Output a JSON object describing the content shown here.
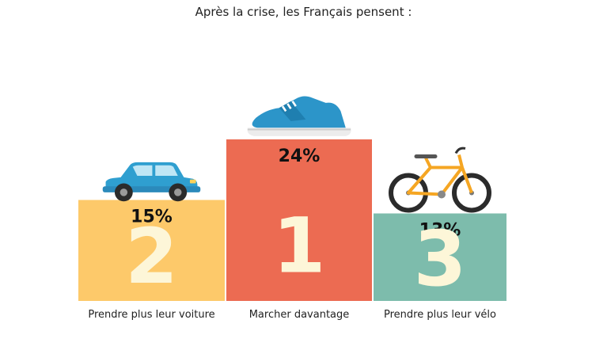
{
  "title": "Après la crise, les Français pensent :",
  "chart_data": {
    "type": "bar",
    "title": "Après la crise, les Français pensent :",
    "categories": [
      "Prendre plus leur voiture",
      "Marcher davantage",
      "Prendre plus leur vélo"
    ],
    "values": [
      15,
      24,
      13
    ],
    "value_labels": [
      "15%",
      "24%",
      "13%"
    ],
    "ranks": [
      "2",
      "1",
      "3"
    ],
    "icons": [
      "car-icon",
      "sneaker-icon",
      "bicycle-icon"
    ],
    "colors": [
      "#fdc96a",
      "#ec6b52",
      "#7dbcac"
    ],
    "ylim": [
      0,
      28
    ],
    "xlabel": "",
    "ylabel": "",
    "grid": false,
    "legend": "none"
  }
}
